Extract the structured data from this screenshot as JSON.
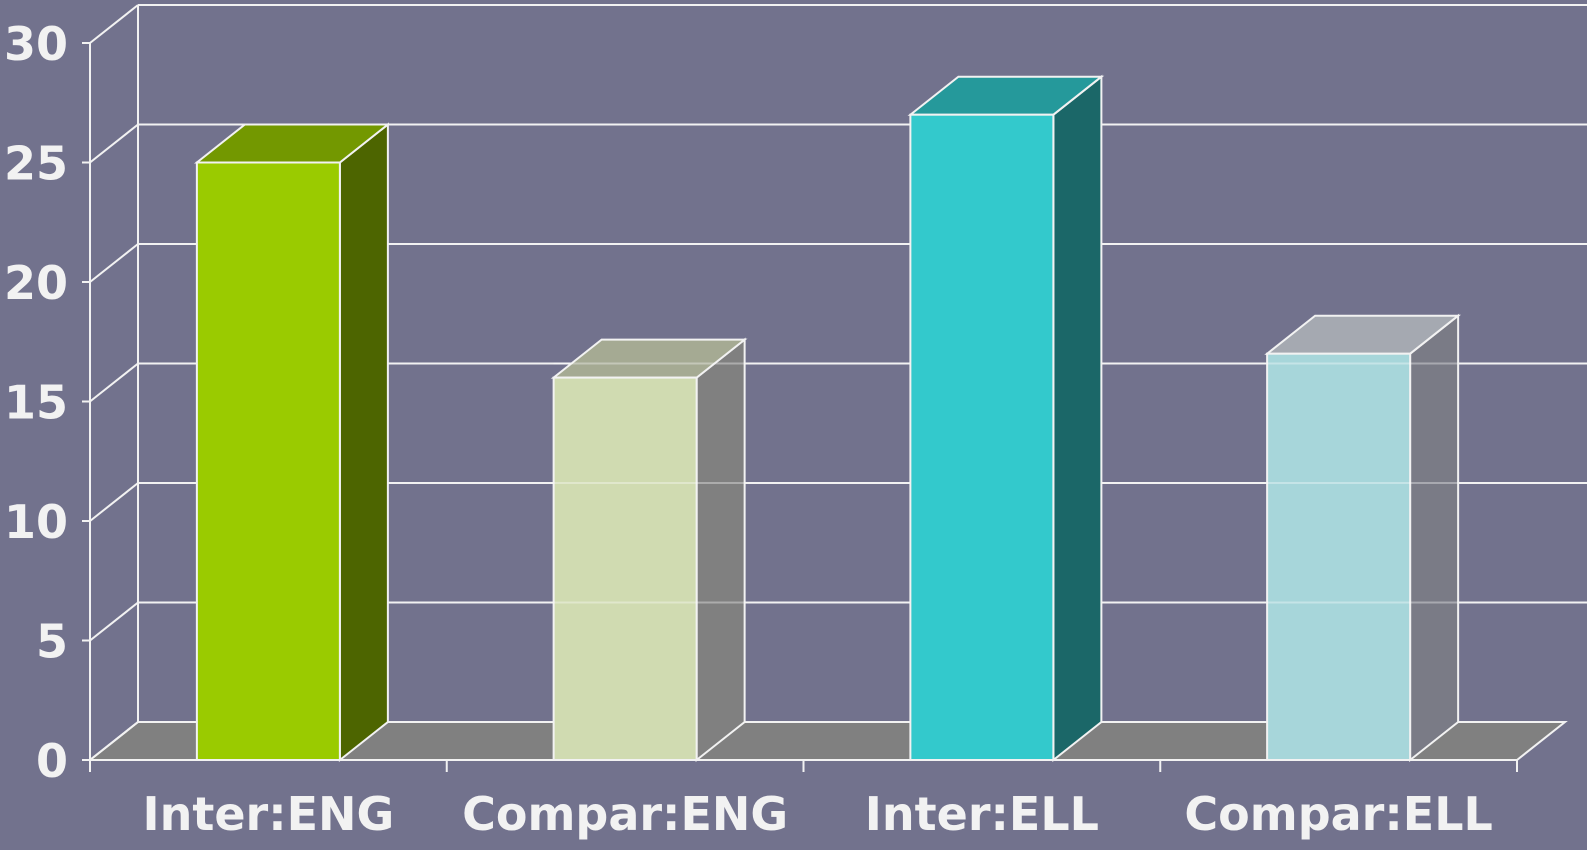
{
  "chart_data": {
    "type": "bar",
    "style": "3d-column",
    "categories": [
      "Inter:ENG",
      "Compar:ENG",
      "Inter:ELL",
      "Compar:ELL"
    ],
    "values": [
      25,
      16,
      27,
      17
    ],
    "ylim": [
      0,
      30
    ],
    "yticks": [
      "0",
      "5",
      "10",
      "15",
      "20",
      "25",
      "30"
    ],
    "grid": true,
    "legend": "none",
    "colors": {
      "background": "#72728d",
      "floor": "#808080",
      "grid": "#f2f2f2",
      "bars": [
        {
          "front": "#9acb00",
          "top": "#739800",
          "side": "#4d6500"
        },
        {
          "front": "#d0dbb1",
          "top": "#a5aa93",
          "side": "#808080"
        },
        {
          "front": "#33c9cc",
          "top": "#25999b",
          "side": "#1b6768"
        },
        {
          "front": "#a7d6da",
          "top": "#a5a9b1",
          "side": "#7a7b86"
        }
      ]
    }
  }
}
